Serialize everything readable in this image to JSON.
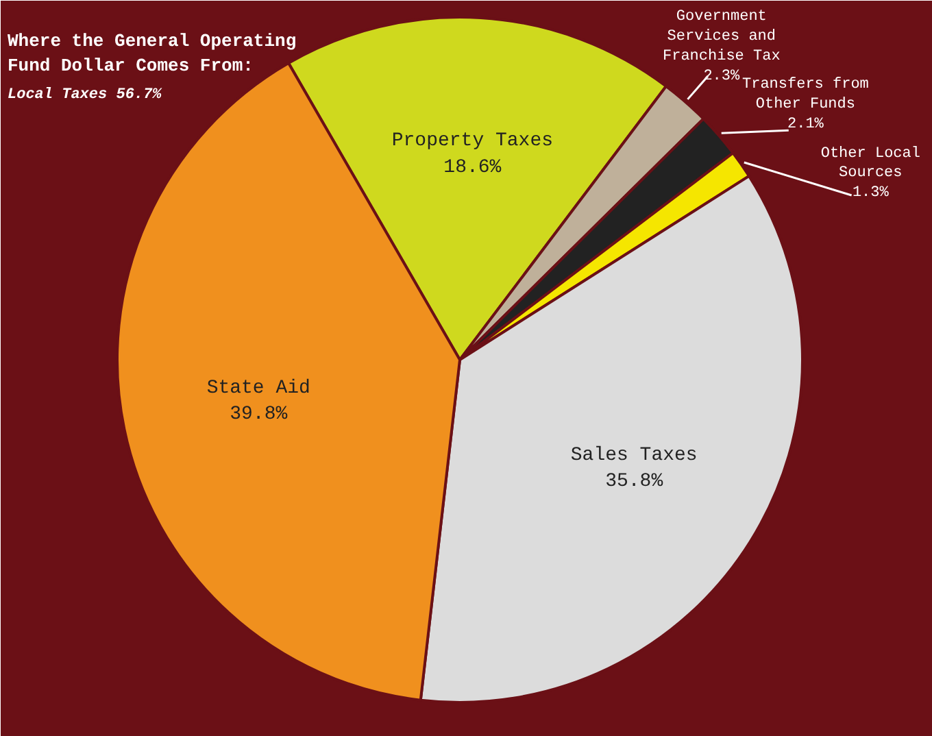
{
  "chart_data": {
    "type": "pie",
    "title": "Where the General Operating Fund Dollar Comes From:",
    "annotations": [
      "Local Taxes 56.7%"
    ],
    "categories": [
      "Property Taxes",
      "Government Services and Franchise Tax",
      "Transfers from Other Funds",
      "Other Local Sources",
      "Sales Taxes",
      "State Aid"
    ],
    "values": [
      18.6,
      2.3,
      2.1,
      1.3,
      35.8,
      39.8
    ],
    "colors": [
      "#cfd91e",
      "#bfb09a",
      "#222222",
      "#f5e600",
      "#dcdcdc",
      "#f0901e"
    ],
    "value_labels": [
      "18.6%",
      "2.3%",
      "2.1%",
      "1.3%",
      "35.8%",
      "39.8%"
    ]
  }
}
